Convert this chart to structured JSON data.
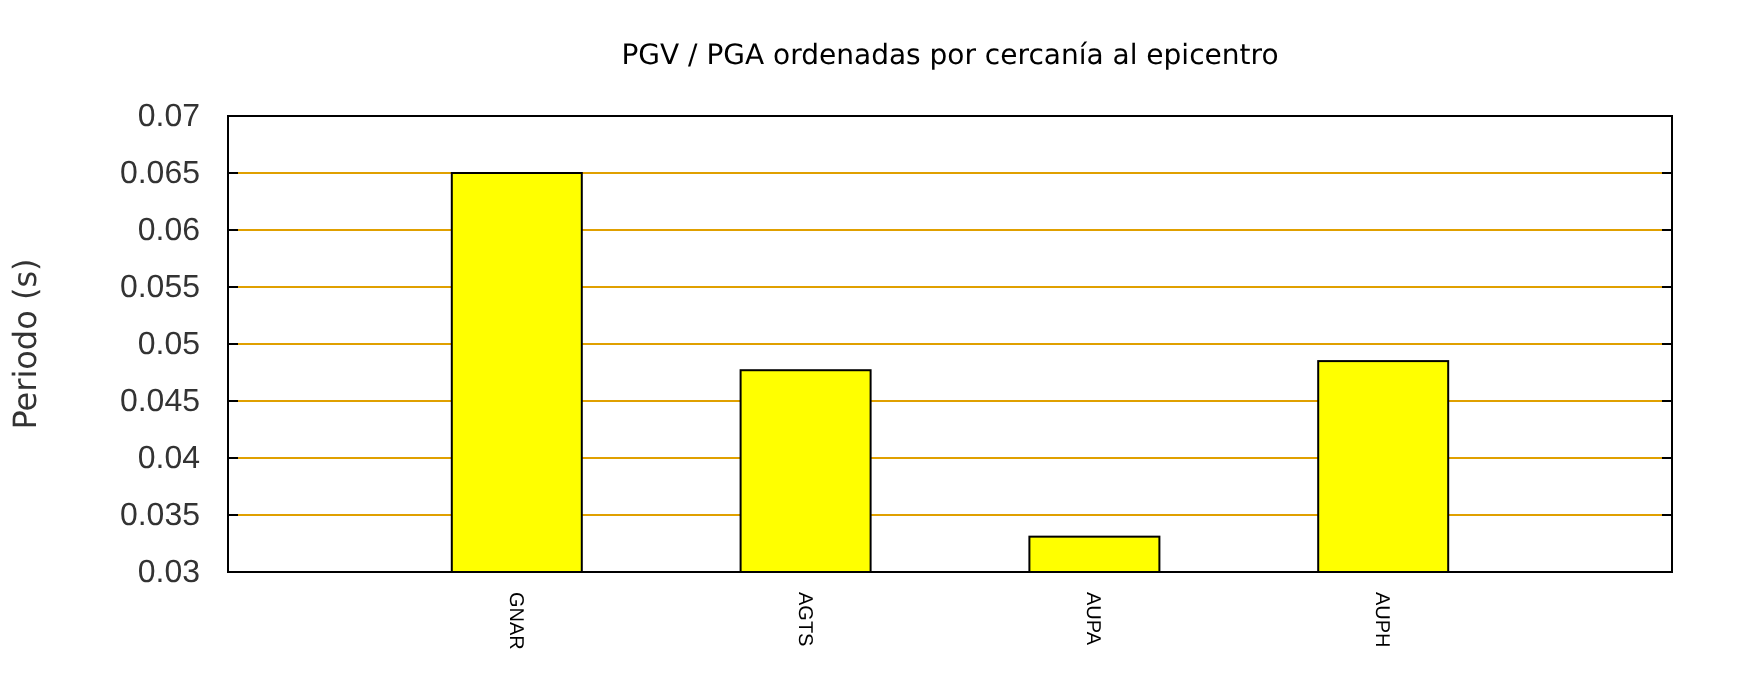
{
  "chart_data": {
    "type": "bar",
    "title": "PGV / PGA ordenadas por cercanía al epicentro",
    "ylabel": "Periodo (s)",
    "categories": [
      "GNAR",
      "AGTS",
      "AUPA",
      "AUPH"
    ],
    "values": [
      0.065,
      0.0477,
      0.0331,
      0.0485
    ],
    "color": "#ffff00",
    "ylim": [
      0.03,
      0.07
    ],
    "yticks": [
      0.03,
      0.035,
      0.04,
      0.045,
      0.05,
      0.055,
      0.06,
      0.065,
      0.07
    ],
    "grid": "y"
  }
}
